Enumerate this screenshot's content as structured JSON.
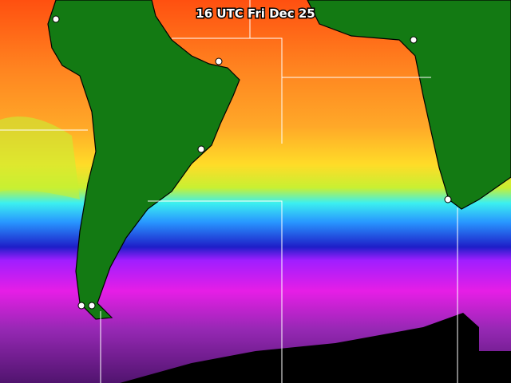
{
  "header": {
    "title": "16 UTC Fri Dec 25"
  }
}
